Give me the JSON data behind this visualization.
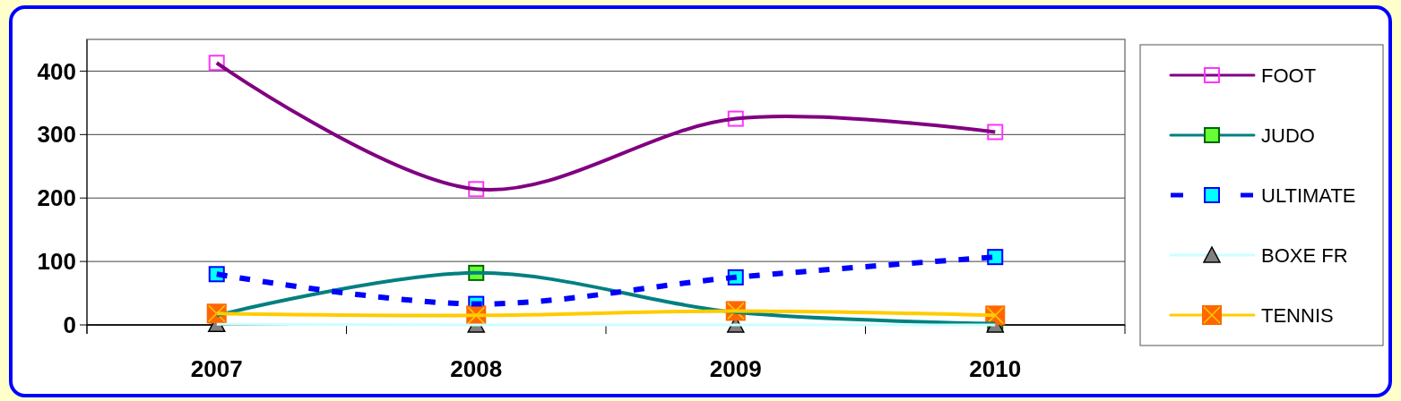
{
  "chart_data": {
    "type": "line",
    "categories": [
      "2007",
      "2008",
      "2009",
      "2010"
    ],
    "ylim": [
      0,
      450
    ],
    "yticks": [
      0,
      100,
      200,
      300,
      400
    ],
    "grid": "y",
    "legend": "right",
    "series": [
      {
        "name": "FOOT",
        "color": "#800080",
        "marker": "square",
        "values": [
          413,
          214,
          325,
          304
        ]
      },
      {
        "name": "JUDO",
        "color": "#008080",
        "marker": "square",
        "values": [
          15,
          82,
          20,
          2
        ]
      },
      {
        "name": "ULTIMATE",
        "color": "#0000ff",
        "marker": "square",
        "line_style": "dashed",
        "values": [
          80,
          33,
          75,
          107
        ]
      },
      {
        "name": "BOXE FR",
        "color": "#ccffff",
        "marker": "triangle",
        "values": [
          1,
          0,
          0,
          0
        ]
      },
      {
        "name": "TENNIS",
        "color": "#ffcc00",
        "marker": "cross",
        "values": [
          18,
          15,
          22,
          15
        ]
      }
    ]
  }
}
